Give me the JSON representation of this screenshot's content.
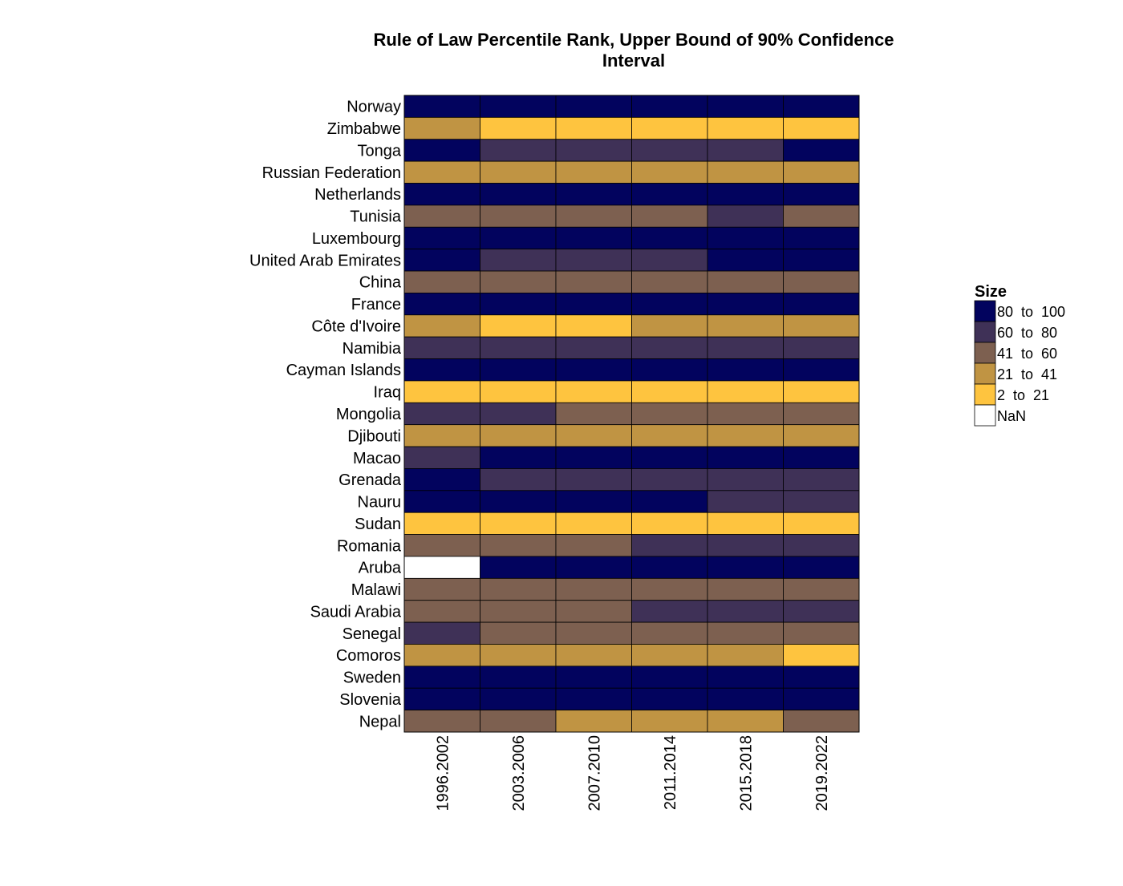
{
  "chart_data": {
    "type": "heatmap",
    "title": [
      "Rule of Law Percentile Rank, Upper Bound of 90% Confidence",
      "Interval"
    ],
    "xlabel": "",
    "ylabel": "",
    "x_categories": [
      "1996.2002",
      "2003.2006",
      "2007.2010",
      "2011.2014",
      "2015.2018",
      "2019.2022"
    ],
    "y_categories": [
      "Norway",
      "Zimbabwe",
      "Tonga",
      "Russian Federation",
      "Netherlands",
      "Tunisia",
      "Luxembourg",
      "United Arab Emirates",
      "China",
      "France",
      "Côte d'Ivoire",
      "Namibia",
      "Cayman Islands",
      "Iraq",
      "Mongolia",
      "Djibouti",
      "Macao",
      "Grenada",
      "Nauru",
      "Sudan",
      "Romania",
      "Aruba",
      "Malawi",
      "Saudi Arabia",
      "Senegal",
      "Comoros",
      "Sweden",
      "Slovenia",
      "Nepal"
    ],
    "legend": {
      "title": "Size",
      "position": "right",
      "bins": [
        {
          "label": "80  to  100",
          "color": "#02035e"
        },
        {
          "label": "60  to  80",
          "color": "#3f3157"
        },
        {
          "label": "41  to  60",
          "color": "#7d6050"
        },
        {
          "label": "21  to  41",
          "color": "#c09443"
        },
        {
          "label": "2  to  21",
          "color": "#fec43f"
        },
        {
          "label": "NaN",
          "color": "#ffffff"
        }
      ]
    },
    "cell_bins": [
      [
        0,
        0,
        0,
        0,
        0,
        0
      ],
      [
        3,
        4,
        4,
        4,
        4,
        4
      ],
      [
        0,
        1,
        1,
        1,
        1,
        0
      ],
      [
        3,
        3,
        3,
        3,
        3,
        3
      ],
      [
        0,
        0,
        0,
        0,
        0,
        0
      ],
      [
        2,
        2,
        2,
        2,
        1,
        2
      ],
      [
        0,
        0,
        0,
        0,
        0,
        0
      ],
      [
        0,
        1,
        1,
        1,
        0,
        0
      ],
      [
        2,
        2,
        2,
        2,
        2,
        2
      ],
      [
        0,
        0,
        0,
        0,
        0,
        0
      ],
      [
        3,
        4,
        4,
        3,
        3,
        3
      ],
      [
        1,
        1,
        1,
        1,
        1,
        1
      ],
      [
        0,
        0,
        0,
        0,
        0,
        0
      ],
      [
        4,
        4,
        4,
        4,
        4,
        4
      ],
      [
        1,
        1,
        2,
        2,
        2,
        2
      ],
      [
        3,
        3,
        3,
        3,
        3,
        3
      ],
      [
        1,
        0,
        0,
        0,
        0,
        0
      ],
      [
        0,
        1,
        1,
        1,
        1,
        1
      ],
      [
        0,
        0,
        0,
        0,
        1,
        1
      ],
      [
        4,
        4,
        4,
        4,
        4,
        4
      ],
      [
        2,
        2,
        2,
        1,
        1,
        1
      ],
      [
        5,
        0,
        0,
        0,
        0,
        0
      ],
      [
        2,
        2,
        2,
        2,
        2,
        2
      ],
      [
        2,
        2,
        2,
        1,
        1,
        1
      ],
      [
        1,
        2,
        2,
        2,
        2,
        2
      ],
      [
        3,
        3,
        3,
        3,
        3,
        4
      ],
      [
        0,
        0,
        0,
        0,
        0,
        0
      ],
      [
        0,
        0,
        0,
        0,
        0,
        0
      ],
      [
        2,
        2,
        3,
        3,
        3,
        2
      ]
    ],
    "grid": false
  }
}
